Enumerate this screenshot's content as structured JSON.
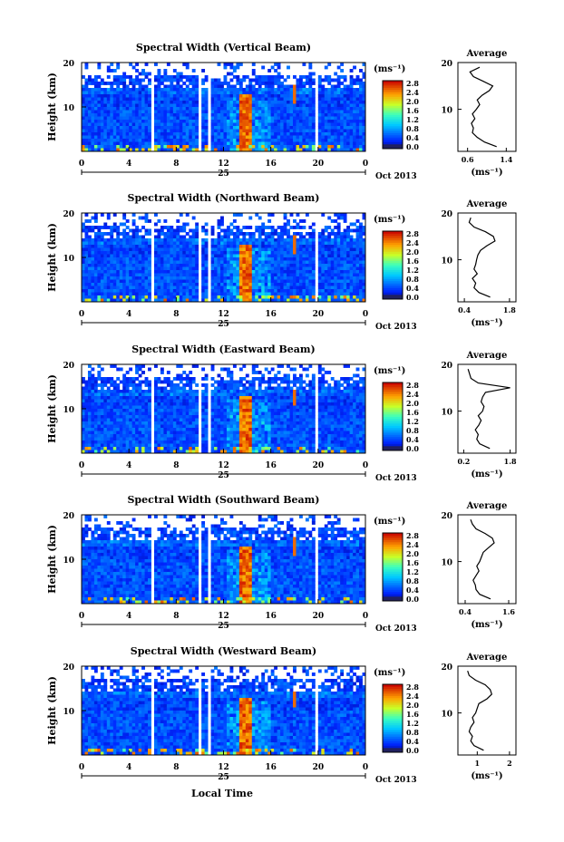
{
  "figure": {
    "x_axis_label": "Local Time",
    "date_day": "25",
    "month_year": "Oct 2013",
    "height_label": "Height (km)",
    "unit_label": "(ms⁻¹)",
    "average_title": "Average"
  },
  "chart_data": [
    {
      "type": "heatmap",
      "title": "Spectral Width (Vertical Beam)",
      "xlabel": "Local Time",
      "ylabel": "Height (km)",
      "x_ticks": [
        "0",
        "4",
        "8",
        "12",
        "16",
        "20",
        "0"
      ],
      "y_ticks": [
        "10",
        "20"
      ],
      "colorbar_ticks": [
        "0.0",
        "0.4",
        "0.8",
        "1.2",
        "1.6",
        "2.0",
        "2.4",
        "2.8"
      ],
      "colorbar_range": [
        0,
        3.0
      ],
      "average_profile": {
        "title": "Average",
        "xlabel": "(ms⁻¹)",
        "x_ticks": [
          "0.6",
          "1.4"
        ],
        "xlim": [
          0.4,
          1.6
        ],
        "y_ticks": [
          "10",
          "20"
        ],
        "ylim": [
          1,
          20
        ],
        "height": [
          2,
          3,
          4,
          5,
          6,
          7,
          8,
          9,
          10,
          11,
          12,
          13,
          14,
          15,
          16,
          17,
          18,
          19
        ],
        "value": [
          1.2,
          0.95,
          0.8,
          0.7,
          0.72,
          0.68,
          0.75,
          0.7,
          0.78,
          0.85,
          0.8,
          0.9,
          1.05,
          1.12,
          0.92,
          0.72,
          0.65,
          0.85
        ]
      }
    },
    {
      "type": "heatmap",
      "title": "Spectral Width (Northward Beam)",
      "xlabel": "Local Time",
      "ylabel": "Height (km)",
      "x_ticks": [
        "0",
        "4",
        "8",
        "12",
        "16",
        "20",
        "0"
      ],
      "y_ticks": [
        "10",
        "20"
      ],
      "colorbar_ticks": [
        "0.0",
        "0.4",
        "0.8",
        "1.2",
        "1.6",
        "2.0",
        "2.4",
        "2.8"
      ],
      "colorbar_range": [
        0,
        3.0
      ],
      "average_profile": {
        "title": "Average",
        "xlabel": "(ms⁻¹)",
        "x_ticks": [
          "0.4",
          "1.8"
        ],
        "xlim": [
          0.2,
          2.0
        ],
        "y_ticks": [
          "10",
          "20"
        ],
        "ylim": [
          1,
          20
        ],
        "height": [
          2,
          3,
          4,
          5,
          6,
          7,
          8,
          9,
          10,
          11,
          12,
          13,
          14,
          15,
          16,
          17,
          18,
          19
        ],
        "value": [
          1.2,
          0.85,
          0.7,
          0.75,
          0.65,
          0.8,
          0.7,
          0.75,
          0.78,
          0.82,
          0.9,
          1.1,
          1.35,
          1.3,
          1.05,
          0.7,
          0.55,
          0.6
        ]
      }
    },
    {
      "type": "heatmap",
      "title": "Spectral Width (Eastward Beam)",
      "xlabel": "Local Time",
      "ylabel": "Height (km)",
      "x_ticks": [
        "0",
        "4",
        "8",
        "12",
        "16",
        "20",
        "0"
      ],
      "y_ticks": [
        "10",
        "20"
      ],
      "colorbar_ticks": [
        "0.0",
        "0.4",
        "0.8",
        "1.2",
        "1.6",
        "2.0",
        "2.4",
        "2.8"
      ],
      "colorbar_range": [
        0,
        3.0
      ],
      "average_profile": {
        "title": "Average",
        "xlabel": "(ms⁻¹)",
        "x_ticks": [
          "0.2",
          "1.8"
        ],
        "xlim": [
          0.0,
          2.0
        ],
        "y_ticks": [
          "10",
          "20"
        ],
        "ylim": [
          1,
          20
        ],
        "height": [
          2,
          3,
          4,
          5,
          6,
          7,
          8,
          9,
          10,
          11,
          12,
          13,
          14,
          15,
          16,
          17,
          18,
          19
        ],
        "value": [
          1.1,
          0.75,
          0.65,
          0.7,
          0.6,
          0.72,
          0.8,
          0.7,
          0.85,
          0.9,
          0.8,
          0.85,
          0.95,
          1.8,
          0.7,
          0.45,
          0.4,
          0.35
        ]
      }
    },
    {
      "type": "heatmap",
      "title": "Spectral Width (Southward Beam)",
      "xlabel": "Local Time",
      "ylabel": "Height (km)",
      "x_ticks": [
        "0",
        "4",
        "8",
        "12",
        "16",
        "20",
        "0"
      ],
      "y_ticks": [
        "10",
        "20"
      ],
      "colorbar_ticks": [
        "0.0",
        "0.4",
        "0.8",
        "1.2",
        "1.6",
        "2.0",
        "2.4",
        "2.8"
      ],
      "colorbar_range": [
        0,
        3.0
      ],
      "average_profile": {
        "title": "Average",
        "xlabel": "(ms⁻¹)",
        "x_ticks": [
          "0.4",
          "1.6"
        ],
        "xlim": [
          0.2,
          1.8
        ],
        "y_ticks": [
          "10",
          "20"
        ],
        "ylim": [
          1,
          20
        ],
        "height": [
          2,
          3,
          4,
          5,
          6,
          7,
          8,
          9,
          10,
          11,
          12,
          13,
          14,
          15,
          16,
          17,
          18,
          19
        ],
        "value": [
          1.1,
          0.8,
          0.7,
          0.68,
          0.62,
          0.7,
          0.78,
          0.72,
          0.8,
          0.85,
          0.9,
          1.05,
          1.2,
          1.15,
          0.95,
          0.7,
          0.6,
          0.55
        ]
      }
    },
    {
      "type": "heatmap",
      "title": "Spectral Width (Westward Beam)",
      "xlabel": "Local Time",
      "ylabel": "Height (km)",
      "x_ticks": [
        "0",
        "4",
        "8",
        "12",
        "16",
        "20",
        "0"
      ],
      "y_ticks": [
        "10",
        "20"
      ],
      "colorbar_ticks": [
        "0.0",
        "0.4",
        "0.8",
        "1.2",
        "1.6",
        "2.0",
        "2.4",
        "2.8"
      ],
      "colorbar_range": [
        0,
        3.0
      ],
      "average_profile": {
        "title": "Average",
        "xlabel": "(ms⁻¹)",
        "x_ticks": [
          "1",
          "2"
        ],
        "xlim": [
          0.4,
          2.2
        ],
        "y_ticks": [
          "10",
          "20"
        ],
        "ylim": [
          1,
          20
        ],
        "height": [
          2,
          3,
          4,
          5,
          6,
          7,
          8,
          9,
          10,
          11,
          12,
          13,
          14,
          15,
          16,
          17,
          18,
          19
        ],
        "value": [
          1.2,
          0.9,
          0.8,
          0.85,
          0.75,
          0.8,
          0.9,
          0.85,
          0.95,
          1.0,
          1.05,
          1.3,
          1.45,
          1.4,
          1.25,
          0.95,
          0.75,
          0.7
        ]
      }
    }
  ]
}
